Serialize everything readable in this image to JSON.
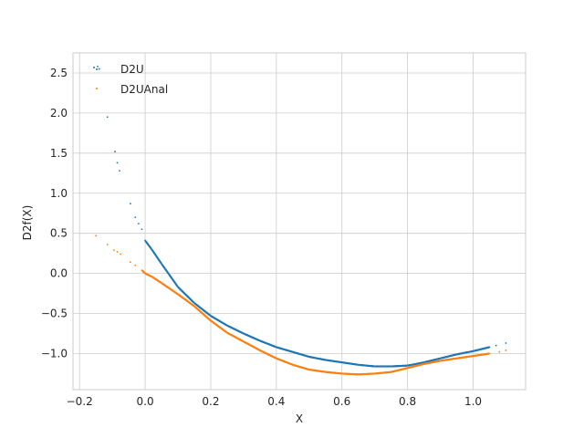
{
  "chart_data": {
    "type": "scatter",
    "title": "",
    "xlabel": "X",
    "ylabel": "D2f(X)",
    "xlim": [
      -0.22,
      1.16
    ],
    "ylim": [
      -1.45,
      2.75
    ],
    "xticks": [
      -0.2,
      0.0,
      0.2,
      0.4,
      0.6,
      0.8,
      1.0
    ],
    "xtick_labels": [
      "−0.2",
      "0.0",
      "0.2",
      "0.4",
      "0.6",
      "0.8",
      "1.0"
    ],
    "yticks": [
      -1.0,
      -0.5,
      0.0,
      0.5,
      1.0,
      1.5,
      2.0,
      2.5
    ],
    "ytick_labels": [
      "−1.0",
      "−0.5",
      "0.0",
      "0.5",
      "1.0",
      "1.5",
      "2.0",
      "2.5"
    ],
    "grid": true,
    "legend_position": "top-left",
    "series": [
      {
        "name": "D2U",
        "color": "#1f77b4",
        "points": [
          [
            -0.145,
            2.58
          ],
          [
            -0.14,
            2.55
          ],
          [
            -0.115,
            1.95
          ],
          [
            -0.092,
            1.52
          ],
          [
            -0.085,
            1.38
          ],
          [
            -0.078,
            1.28
          ],
          [
            -0.045,
            0.87
          ],
          [
            -0.03,
            0.7
          ],
          [
            -0.02,
            0.62
          ],
          [
            -0.01,
            0.55
          ],
          [
            0.0,
            0.41
          ],
          [
            0.02,
            0.3
          ],
          [
            0.05,
            0.12
          ],
          [
            0.1,
            -0.17
          ],
          [
            0.15,
            -0.37
          ],
          [
            0.2,
            -0.53
          ],
          [
            0.25,
            -0.65
          ],
          [
            0.3,
            -0.75
          ],
          [
            0.35,
            -0.84
          ],
          [
            0.4,
            -0.92
          ],
          [
            0.45,
            -0.98
          ],
          [
            0.5,
            -1.04
          ],
          [
            0.55,
            -1.08
          ],
          [
            0.6,
            -1.11
          ],
          [
            0.65,
            -1.14
          ],
          [
            0.7,
            -1.16
          ],
          [
            0.75,
            -1.16
          ],
          [
            0.8,
            -1.15
          ],
          [
            0.85,
            -1.11
          ],
          [
            0.9,
            -1.06
          ],
          [
            0.95,
            -1.01
          ],
          [
            1.0,
            -0.97
          ],
          [
            1.05,
            -0.92
          ],
          [
            1.07,
            -0.9
          ],
          [
            1.1,
            -0.87
          ]
        ]
      },
      {
        "name": "D2UAnal",
        "color": "#ff7f0e",
        "points": [
          [
            -0.15,
            0.47
          ],
          [
            -0.115,
            0.36
          ],
          [
            -0.095,
            0.29
          ],
          [
            -0.085,
            0.27
          ],
          [
            -0.075,
            0.24
          ],
          [
            -0.045,
            0.14
          ],
          [
            -0.03,
            0.1
          ],
          [
            -0.01,
            0.04
          ],
          [
            0.0,
            0.0
          ],
          [
            0.02,
            -0.04
          ],
          [
            0.05,
            -0.12
          ],
          [
            0.1,
            -0.26
          ],
          [
            0.15,
            -0.41
          ],
          [
            0.2,
            -0.59
          ],
          [
            0.25,
            -0.74
          ],
          [
            0.3,
            -0.85
          ],
          [
            0.35,
            -0.96
          ],
          [
            0.4,
            -1.06
          ],
          [
            0.45,
            -1.14
          ],
          [
            0.5,
            -1.2
          ],
          [
            0.55,
            -1.23
          ],
          [
            0.6,
            -1.25
          ],
          [
            0.65,
            -1.26
          ],
          [
            0.7,
            -1.25
          ],
          [
            0.75,
            -1.23
          ],
          [
            0.8,
            -1.18
          ],
          [
            0.85,
            -1.13
          ],
          [
            0.9,
            -1.09
          ],
          [
            0.95,
            -1.06
          ],
          [
            1.0,
            -1.03
          ],
          [
            1.05,
            -1.0
          ],
          [
            1.08,
            -0.98
          ],
          [
            1.1,
            -0.96
          ]
        ]
      }
    ]
  }
}
